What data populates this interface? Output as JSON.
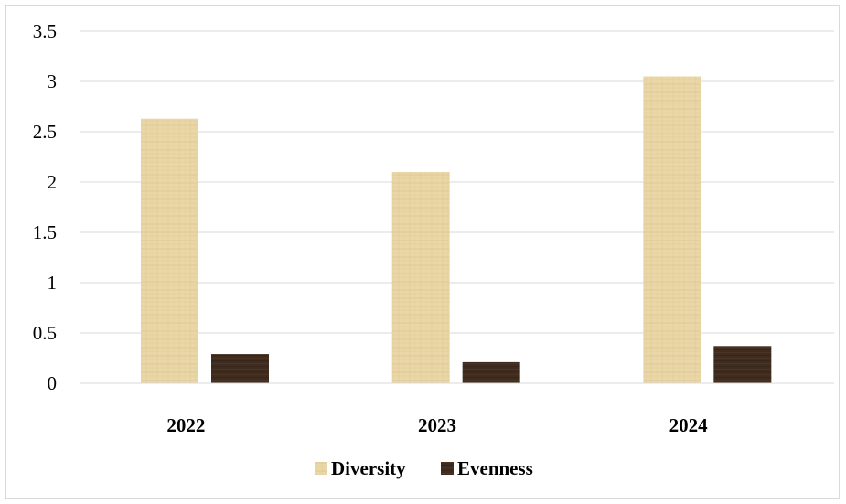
{
  "chart_data": {
    "type": "bar",
    "categories": [
      "2022",
      "2023",
      "2024"
    ],
    "series": [
      {
        "name": "Diversity",
        "values": [
          2.63,
          2.1,
          3.05
        ],
        "color": "#e8d3a2"
      },
      {
        "name": "Evenness",
        "values": [
          0.29,
          0.21,
          0.37
        ],
        "color": "#3d2b1f"
      }
    ],
    "ylim": [
      0,
      3.5
    ],
    "yticks": [
      0,
      0.5,
      1,
      1.5,
      2,
      2.5,
      3,
      3.5
    ],
    "ytick_labels": [
      "0",
      "0.5",
      "1",
      "1.5",
      "2",
      "2.5",
      "3",
      "3.5"
    ],
    "grid": true,
    "legend_position": "bottom",
    "title": "",
    "xlabel": "",
    "ylabel": ""
  }
}
